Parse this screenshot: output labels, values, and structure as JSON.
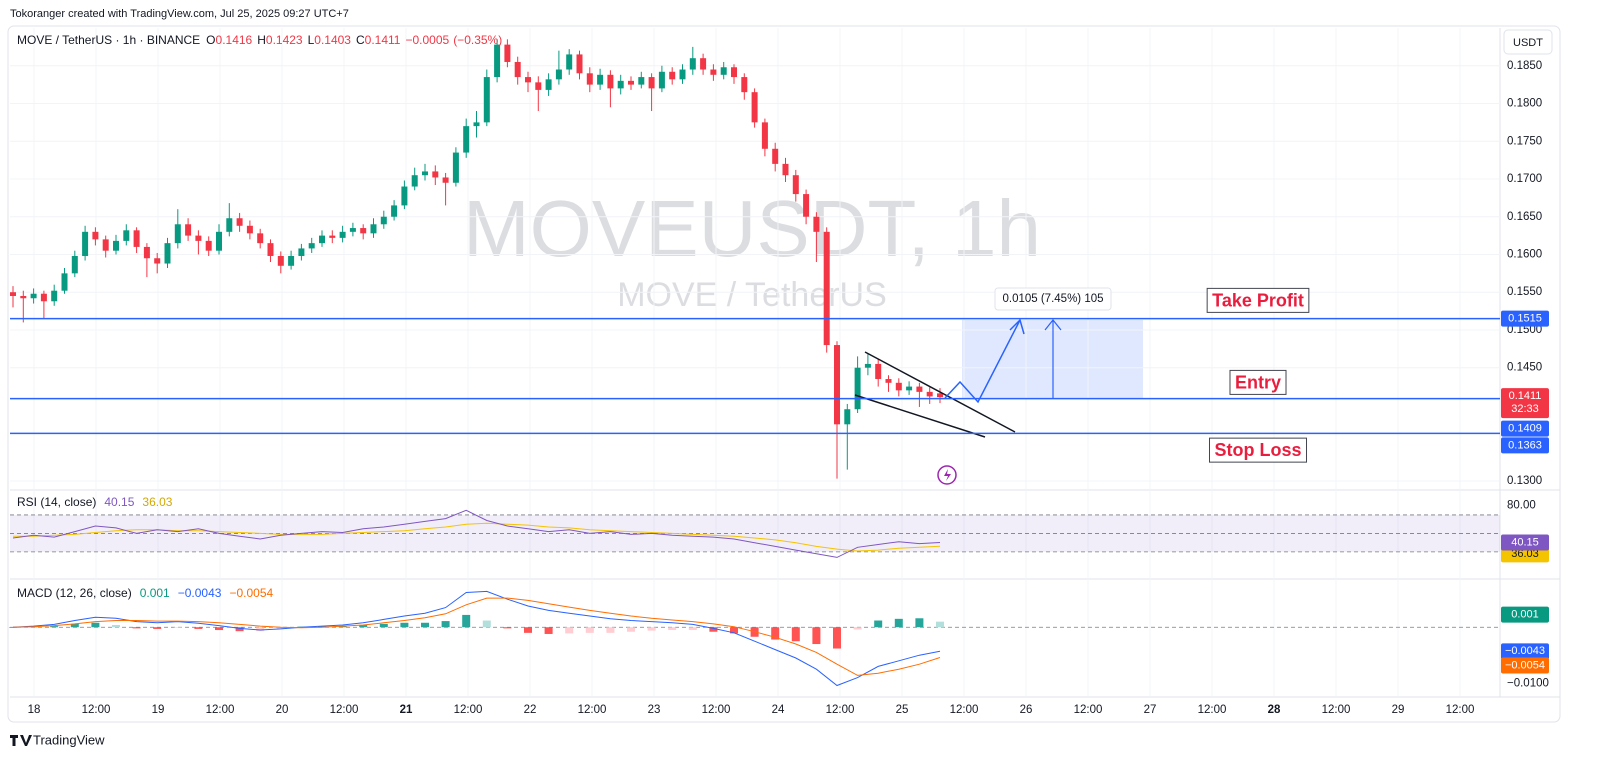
{
  "header": {
    "caption": "Tokoranger created with TradingView.com, Jul 25, 2025 09:27 UTC+7",
    "currency": "USDT"
  },
  "footer": {
    "brand": "TradingView"
  },
  "chart_data": [
    {
      "type": "candlestick",
      "symbol": "MOVE / TetherUS · 1h · BINANCE",
      "watermark": "MOVEUSDT, 1h",
      "watermark_subtitle": "MOVE / TetherUS",
      "legend": [
        {
          "name": "O",
          "value": 0.1416
        },
        {
          "name": "H",
          "value": 0.1423
        },
        {
          "name": "L",
          "value": 0.1403
        },
        {
          "name": "C",
          "value": 0.1411
        }
      ],
      "change": {
        "value": -0.0005,
        "label": "−0.0005"
      },
      "change_pct": {
        "value": -0.35,
        "label": "(−0.35%)"
      },
      "up_color": "#089981",
      "down_color": "#f23645",
      "open": [
        0.155,
        0.1545,
        0.1542,
        0.1548,
        0.1538,
        0.1552,
        0.1575,
        0.1598,
        0.163,
        0.162,
        0.1605,
        0.1618,
        0.1632,
        0.161,
        0.1595,
        0.1588,
        0.1615,
        0.164,
        0.1625,
        0.1618,
        0.1605,
        0.163,
        0.1648,
        0.1638,
        0.1628,
        0.1615,
        0.1598,
        0.1585,
        0.1598,
        0.1608,
        0.1615,
        0.1625,
        0.1622,
        0.163,
        0.1635,
        0.1628,
        0.164,
        0.165,
        0.1665,
        0.169,
        0.1705,
        0.171,
        0.1702,
        0.1695,
        0.1735,
        0.177,
        0.1775,
        0.1835,
        0.1878,
        0.1855,
        0.1835,
        0.1828,
        0.1818,
        0.1832,
        0.1845,
        0.1865,
        0.184,
        0.1825,
        0.1838,
        0.182,
        0.183,
        0.1825,
        0.1835,
        0.182,
        0.1842,
        0.1832,
        0.1845,
        0.186,
        0.1845,
        0.1838,
        0.1848,
        0.1835,
        0.1815,
        0.1775,
        0.174,
        0.172,
        0.1705,
        0.168,
        0.165,
        0.163,
        0.148,
        0.1375,
        0.1395,
        0.145,
        0.1455,
        0.1435,
        0.143,
        0.142,
        0.1425,
        0.1418,
        0.1416
      ],
      "high": [
        0.1558,
        0.1552,
        0.1555,
        0.1552,
        0.156,
        0.1582,
        0.1605,
        0.1638,
        0.1636,
        0.1625,
        0.1626,
        0.164,
        0.1636,
        0.1615,
        0.1602,
        0.1622,
        0.166,
        0.1648,
        0.1632,
        0.1624,
        0.164,
        0.1668,
        0.1655,
        0.1645,
        0.1634,
        0.162,
        0.1604,
        0.1605,
        0.1614,
        0.1622,
        0.1632,
        0.1632,
        0.1638,
        0.1642,
        0.164,
        0.1648,
        0.1658,
        0.1672,
        0.1698,
        0.1715,
        0.172,
        0.1718,
        0.1708,
        0.1742,
        0.178,
        0.179,
        0.1845,
        0.1885,
        0.1885,
        0.1862,
        0.1842,
        0.1836,
        0.184,
        0.187,
        0.1872,
        0.187,
        0.1848,
        0.1846,
        0.1844,
        0.1838,
        0.1836,
        0.1842,
        0.184,
        0.185,
        0.1848,
        0.1852,
        0.1875,
        0.1866,
        0.1852,
        0.1855,
        0.1852,
        0.184,
        0.182,
        0.178,
        0.1748,
        0.1728,
        0.1712,
        0.1686,
        0.1656,
        0.1636,
        0.1485,
        0.1402,
        0.1465,
        0.1468,
        0.1462,
        0.144,
        0.1436,
        0.1432,
        0.143,
        0.1424,
        0.1423
      ],
      "low": [
        0.153,
        0.151,
        0.1535,
        0.1515,
        0.1532,
        0.1548,
        0.157,
        0.1592,
        0.1612,
        0.1596,
        0.16,
        0.1612,
        0.1602,
        0.157,
        0.1575,
        0.1582,
        0.1608,
        0.1618,
        0.16,
        0.1598,
        0.16,
        0.1624,
        0.163,
        0.162,
        0.1608,
        0.159,
        0.1575,
        0.158,
        0.1592,
        0.1602,
        0.161,
        0.1615,
        0.1616,
        0.1624,
        0.162,
        0.1622,
        0.1634,
        0.1645,
        0.166,
        0.1685,
        0.1698,
        0.1692,
        0.1665,
        0.169,
        0.1728,
        0.1755,
        0.177,
        0.1828,
        0.1848,
        0.1825,
        0.1815,
        0.179,
        0.181,
        0.1825,
        0.1838,
        0.1832,
        0.1815,
        0.1818,
        0.1795,
        0.1812,
        0.1818,
        0.182,
        0.179,
        0.1815,
        0.1825,
        0.1826,
        0.1838,
        0.1838,
        0.183,
        0.1832,
        0.1826,
        0.1805,
        0.1768,
        0.173,
        0.171,
        0.1696,
        0.167,
        0.164,
        0.159,
        0.147,
        0.1303,
        0.1315,
        0.139,
        0.144,
        0.1425,
        0.1418,
        0.1412,
        0.1414,
        0.1398,
        0.1402,
        0.1403
      ],
      "close": [
        0.1545,
        0.1542,
        0.1548,
        0.1538,
        0.1552,
        0.1575,
        0.1598,
        0.163,
        0.162,
        0.1605,
        0.1618,
        0.1632,
        0.161,
        0.1595,
        0.1588,
        0.1615,
        0.164,
        0.1625,
        0.1618,
        0.1605,
        0.163,
        0.1648,
        0.1638,
        0.1628,
        0.1615,
        0.1598,
        0.1585,
        0.1598,
        0.1608,
        0.1615,
        0.1625,
        0.1622,
        0.163,
        0.1635,
        0.1628,
        0.164,
        0.165,
        0.1665,
        0.169,
        0.1705,
        0.171,
        0.1702,
        0.1695,
        0.1735,
        0.177,
        0.1775,
        0.1835,
        0.1878,
        0.1855,
        0.1835,
        0.1828,
        0.1818,
        0.1832,
        0.1845,
        0.1865,
        0.184,
        0.1825,
        0.1838,
        0.182,
        0.183,
        0.1825,
        0.1835,
        0.182,
        0.1842,
        0.1832,
        0.1845,
        0.186,
        0.1845,
        0.1838,
        0.1848,
        0.1835,
        0.1815,
        0.1775,
        0.174,
        0.172,
        0.1705,
        0.168,
        0.165,
        0.163,
        0.148,
        0.1375,
        0.1395,
        0.145,
        0.1455,
        0.1435,
        0.143,
        0.142,
        0.1425,
        0.1418,
        0.1412,
        0.1411
      ],
      "ylim": [
        0.1288,
        0.19
      ],
      "yticks": [
        {
          "value": 0.185,
          "label": "0.1850"
        },
        {
          "value": 0.18,
          "label": "0.1800"
        },
        {
          "value": 0.175,
          "label": "0.1750"
        },
        {
          "value": 0.17,
          "label": "0.1700"
        },
        {
          "value": 0.165,
          "label": "0.1650"
        },
        {
          "value": 0.16,
          "label": "0.1600"
        },
        {
          "value": 0.155,
          "label": "0.1550"
        },
        {
          "value": 0.15,
          "label": "0.1500"
        },
        {
          "value": 0.145,
          "label": "0.1450"
        },
        {
          "value": 0.13,
          "label": "0.1300"
        }
      ],
      "xticks": [
        "18",
        "12:00",
        "19",
        "12:00",
        "20",
        "12:00",
        "21",
        "12:00",
        "22",
        "12:00",
        "23",
        "12:00",
        "24",
        "12:00",
        "25",
        "12:00",
        "26",
        "12:00",
        "27",
        "12:00",
        "28",
        "12:00",
        "29",
        "12:00"
      ],
      "grid": true,
      "levels": [
        {
          "name": "Take Profit",
          "value": 0.1515,
          "label": "0.1515"
        },
        {
          "name": "Entry",
          "value": 0.1409,
          "label": "0.1409"
        },
        {
          "name": "Stop Loss",
          "value": 0.1363,
          "label": "0.1363"
        }
      ],
      "level_color": "#2962ff",
      "last_price": {
        "value": 0.1411,
        "label": "0.1411",
        "countdown": "32:33"
      },
      "measure": "0.0105 (7.45%) 105"
    },
    {
      "type": "line",
      "title": "RSI (14, close)",
      "series": [
        {
          "color": "#7e57c2",
          "values": [
            45,
            48,
            46,
            52,
            58,
            56,
            50,
            54,
            52,
            55,
            50,
            47,
            44,
            48,
            50,
            52,
            51,
            55,
            57,
            60,
            63,
            66,
            75,
            64,
            58,
            55,
            52,
            54,
            50,
            52,
            49,
            50,
            48,
            47,
            46,
            44,
            40,
            36,
            32,
            28,
            24,
            35,
            38,
            41,
            39,
            40.15
          ]
        },
        {
          "color": "#f5c400",
          "values": [
            47,
            47,
            48,
            49,
            51,
            53,
            54,
            54,
            53,
            53,
            52,
            51,
            50,
            49,
            49,
            49,
            50,
            51,
            52,
            53,
            55,
            57,
            60,
            61,
            60,
            59,
            57,
            56,
            54,
            53,
            52,
            51,
            50,
            49,
            48,
            47,
            45,
            43,
            40,
            36,
            33,
            31,
            32,
            34,
            35,
            36.03
          ]
        }
      ],
      "levels": [
        70,
        50,
        30
      ],
      "ylim": [
        5,
        91.6
      ],
      "yticks": [
        {
          "value": 80,
          "label": "80.00"
        }
      ]
    },
    {
      "type": "macd",
      "title": "MACD (12, 26, close)",
      "histogram": {
        "values": [
          0,
          0.0001,
          0.0002,
          0.0006,
          0.0008,
          0.0004,
          -0.0002,
          -0.0003,
          -0.0001,
          -0.0003,
          -0.0005,
          -0.0007,
          -0.0007,
          -0.0003,
          0.0001,
          0.0002,
          0.0002,
          0.0004,
          0.0006,
          0.0008,
          0.0008,
          0.0011,
          0.0022,
          0.0012,
          -0.0002,
          -0.001,
          -0.0012,
          -0.0011,
          -0.001,
          -0.001,
          -0.0008,
          -0.0006,
          -0.0005,
          -0.0005,
          -0.0008,
          -0.0011,
          -0.0017,
          -0.0022,
          -0.0025,
          -0.003,
          -0.0038,
          -0.0004,
          0.0012,
          0.0015,
          0.0016,
          0.001
        ],
        "colors": [
          "#26a69a",
          "#b2dfdb",
          "#ffcdd2",
          "#ff5252"
        ],
        "label_color": "#089981"
      },
      "series": [
        {
          "color": "#2962ff",
          "last_label": "−0.0043",
          "values": [
            0,
            0.0002,
            0.0005,
            0.0012,
            0.0018,
            0.0016,
            0.001,
            0.0008,
            0.001,
            0.0007,
            0.0003,
            -0.0002,
            -0.0005,
            -0.0003,
            0,
            0.0002,
            0.0004,
            0.0008,
            0.0014,
            0.002,
            0.0025,
            0.0035,
            0.0062,
            0.0064,
            0.005,
            0.0038,
            0.003,
            0.0025,
            0.002,
            0.0015,
            0.0012,
            0.001,
            0.0008,
            0.0005,
            -0.0002,
            -0.001,
            -0.0025,
            -0.004,
            -0.0055,
            -0.0075,
            -0.0104,
            -0.009,
            -0.007,
            -0.006,
            -0.005,
            -0.0043
          ]
        },
        {
          "color": "#ff6d00",
          "last_label": "−0.0054",
          "values": [
            0,
            0.0001,
            0.0003,
            0.0006,
            0.001,
            0.0012,
            0.0012,
            0.0011,
            0.0011,
            0.001,
            0.0008,
            0.0005,
            0.0002,
            0,
            -0.0001,
            0,
            0.0002,
            0.0004,
            0.0008,
            0.0012,
            0.0017,
            0.0024,
            0.004,
            0.0052,
            0.0052,
            0.0048,
            0.0042,
            0.0036,
            0.003,
            0.0025,
            0.002,
            0.0016,
            0.0013,
            0.001,
            0.0006,
            0.0001,
            -0.0008,
            -0.0018,
            -0.003,
            -0.0045,
            -0.0066,
            -0.0086,
            -0.0082,
            -0.0075,
            -0.0066,
            -0.0054
          ]
        }
      ],
      "levels": [
        0
      ],
      "ylim": [
        -0.0121,
        0.0079
      ],
      "yticks": [
        {
          "value": -0.01,
          "label": "−0.0100"
        }
      ]
    }
  ]
}
